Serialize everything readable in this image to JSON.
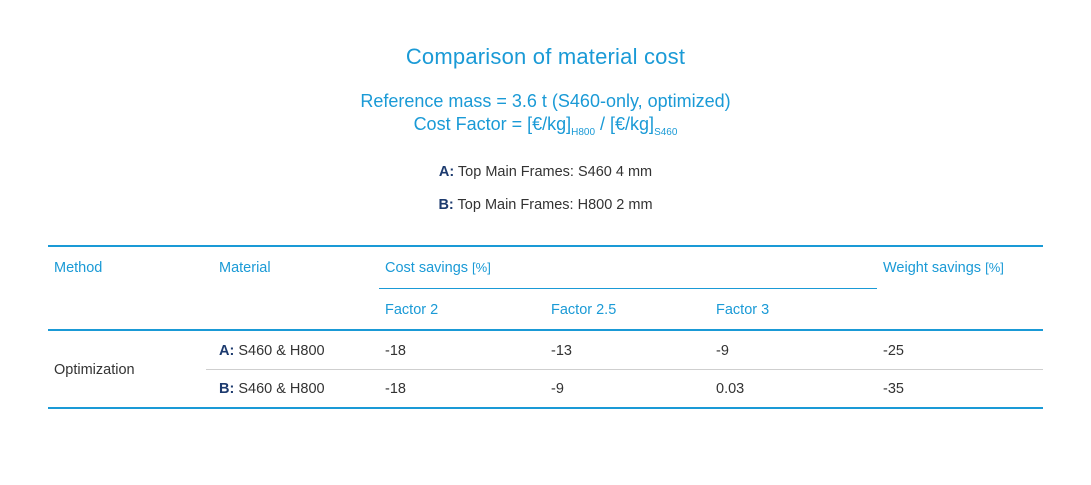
{
  "title": "Comparison of material cost",
  "subtitle": {
    "line1": "Reference mass = 3.6 t (S460-only, optimized)",
    "line2_prefix": "Cost Factor = [€/kg]",
    "line2_sub1": "H800",
    "line2_mid": " / [€/kg]",
    "line2_sub2": "S460"
  },
  "variants": [
    {
      "key": "A:",
      "text": " Top Main Frames: S460  4 mm"
    },
    {
      "key": "B:",
      "text": " Top Main Frames: H800  2 mm"
    }
  ],
  "table": {
    "headers": {
      "method": "Method",
      "material": "Material",
      "cost_savings": "Cost savings",
      "cost_unit": "[%]",
      "weight_savings": "Weight savings",
      "weight_unit": "[%]",
      "factor_2": "Factor 2",
      "factor_25": "Factor 2.5",
      "factor_3": "Factor 3"
    },
    "method_value": "Optimization",
    "rows": [
      {
        "key": "A:",
        "material": " S460 & H800",
        "f2": "-18",
        "f25": "-13",
        "f3": "-9",
        "weight": "-25"
      },
      {
        "key": "B:",
        "material": " S460 & H800",
        "f2": "-18",
        "f25": "-9",
        "f3": "0.03",
        "weight": "-35"
      }
    ]
  },
  "colors": {
    "accent": "#1a9ad6",
    "key_text": "#1c3a6e",
    "body_text": "#333333"
  }
}
